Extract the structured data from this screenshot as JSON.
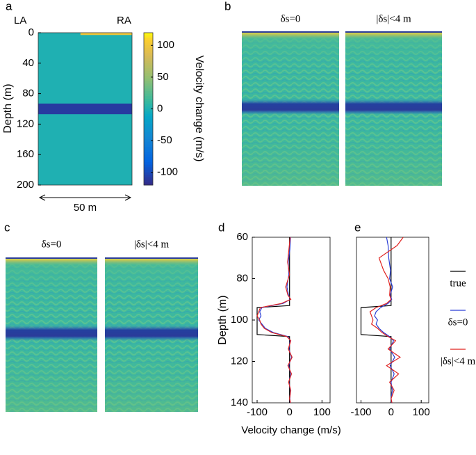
{
  "chart_data": [
    {
      "type": "heatmap",
      "panel_label": "a",
      "left_label": "LA",
      "right_label": "RA",
      "y_label": "Depth (m)",
      "ylim": [
        0,
        200
      ],
      "yticks": [
        0,
        40,
        80,
        120,
        160,
        200
      ],
      "x_span_label": "50 m",
      "background": 0,
      "layers": [
        {
          "top": 93,
          "bottom": 107,
          "value": -110
        },
        {
          "top": 0,
          "bottom": 3,
          "value": 100
        }
      ],
      "colorbar_label": "Velocity change (m/s)",
      "clim": [
        -120,
        120
      ],
      "cticks": [
        -100,
        -50,
        0,
        50,
        100
      ]
    },
    {
      "type": "image-pair",
      "panel_label": "b",
      "titles": [
        "δs=0",
        "|δs|<4 m"
      ]
    },
    {
      "type": "image-pair",
      "panel_label": "c",
      "titles": [
        "δs=0",
        "|δs|<4 m"
      ]
    },
    {
      "type": "line",
      "panel_label": "d",
      "y_label": "Depth (m)",
      "x_label": "Velocity change (m/s)",
      "xlim": [
        -115,
        125
      ],
      "ylim": [
        60,
        140
      ],
      "xticks": [
        -100,
        0,
        100
      ],
      "yticks": [
        60,
        80,
        100,
        120,
        140
      ],
      "series": [
        {
          "color": "#000000",
          "depth": [
            60,
            93,
            94,
            107,
            108,
            140
          ],
          "values": [
            0,
            0,
            -100,
            -100,
            0,
            0
          ]
        },
        {
          "color": "#2b3fd6",
          "depth": [
            60,
            66,
            72,
            78,
            84,
            88,
            90,
            92,
            94,
            96,
            98,
            100,
            102,
            104,
            106,
            108,
            110,
            114,
            118,
            122,
            126,
            130,
            134,
            138,
            140
          ],
          "values": [
            3,
            1,
            -4,
            -2,
            -8,
            -3,
            2,
            -20,
            -85,
            -92,
            -88,
            -95,
            -85,
            -75,
            -50,
            -5,
            2,
            -2,
            6,
            -3,
            4,
            -2,
            3,
            1,
            2
          ]
        },
        {
          "color": "#e0221f",
          "depth": [
            60,
            66,
            72,
            78,
            84,
            88,
            90,
            92,
            94,
            96,
            98,
            100,
            102,
            104,
            106,
            108,
            110,
            114,
            118,
            122,
            126,
            130,
            134,
            138,
            140
          ],
          "values": [
            2,
            -2,
            -6,
            0,
            -12,
            -5,
            4,
            -25,
            -90,
            -95,
            -100,
            -92,
            -88,
            -78,
            -55,
            -8,
            4,
            -4,
            8,
            -5,
            6,
            -3,
            4,
            0,
            3
          ]
        }
      ]
    },
    {
      "type": "line",
      "panel_label": "e",
      "xlim": [
        -115,
        125
      ],
      "ylim": [
        60,
        140
      ],
      "xticks": [
        -100,
        0,
        100
      ],
      "series": [
        {
          "name": "true",
          "color": "#000000",
          "depth": [
            60,
            93,
            94,
            107,
            108,
            140
          ],
          "values": [
            0,
            0,
            -100,
            -100,
            0,
            0
          ]
        },
        {
          "name": "δs=0",
          "color": "#2b3fd6",
          "depth": [
            60,
            64,
            70,
            76,
            80,
            84,
            88,
            90,
            92,
            94,
            96,
            98,
            100,
            102,
            104,
            106,
            108,
            110,
            114,
            118,
            122,
            126,
            130,
            134,
            138,
            140
          ],
          "values": [
            -15,
            -10,
            -8,
            -2,
            -5,
            5,
            -3,
            2,
            -10,
            -35,
            -50,
            -55,
            -45,
            -50,
            -40,
            -25,
            -5,
            8,
            -5,
            12,
            -3,
            10,
            0,
            4,
            0,
            2
          ]
        },
        {
          "name": "|δs|<4 m",
          "color": "#e0221f",
          "depth": [
            60,
            64,
            70,
            76,
            80,
            84,
            88,
            90,
            92,
            94,
            96,
            98,
            100,
            102,
            104,
            106,
            108,
            110,
            114,
            118,
            122,
            126,
            130,
            134,
            138,
            140
          ],
          "values": [
            40,
            20,
            -40,
            -25,
            -10,
            -3,
            -5,
            0,
            -15,
            -50,
            -70,
            -65,
            -60,
            -65,
            -45,
            -30,
            -10,
            15,
            -10,
            30,
            -15,
            25,
            -5,
            10,
            0,
            3
          ]
        }
      ]
    }
  ]
}
